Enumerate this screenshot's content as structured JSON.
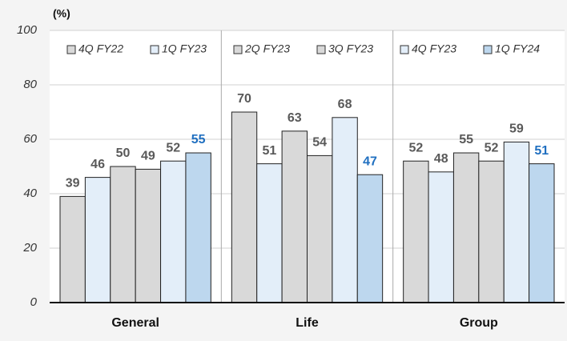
{
  "chart_data": {
    "type": "bar",
    "unit_label": "(%)",
    "categories": [
      "General",
      "Life",
      "Group"
    ],
    "series": [
      {
        "name": "4Q FY22",
        "color": "#d9d9d9",
        "label_color": "#595959",
        "values": [
          39,
          70,
          52
        ]
      },
      {
        "name": "1Q FY23",
        "color": "#e3eef9",
        "label_color": "#595959",
        "values": [
          46,
          51,
          48
        ]
      },
      {
        "name": "2Q FY23",
        "color": "#d9d9d9",
        "label_color": "#595959",
        "values": [
          50,
          63,
          55
        ]
      },
      {
        "name": "3Q FY23",
        "color": "#d9d9d9",
        "label_color": "#595959",
        "values": [
          49,
          54,
          52
        ]
      },
      {
        "name": "4Q FY23",
        "color": "#e3eef9",
        "label_color": "#595959",
        "values": [
          52,
          68,
          59
        ]
      },
      {
        "name": "1Q FY24",
        "color": "#bdd7ee",
        "label_color": "#1f6fc0",
        "values": [
          55,
          47,
          51
        ]
      }
    ],
    "ylim": [
      0,
      100
    ],
    "yticks": [
      0,
      20,
      40,
      60,
      80,
      100
    ],
    "grid": true
  }
}
